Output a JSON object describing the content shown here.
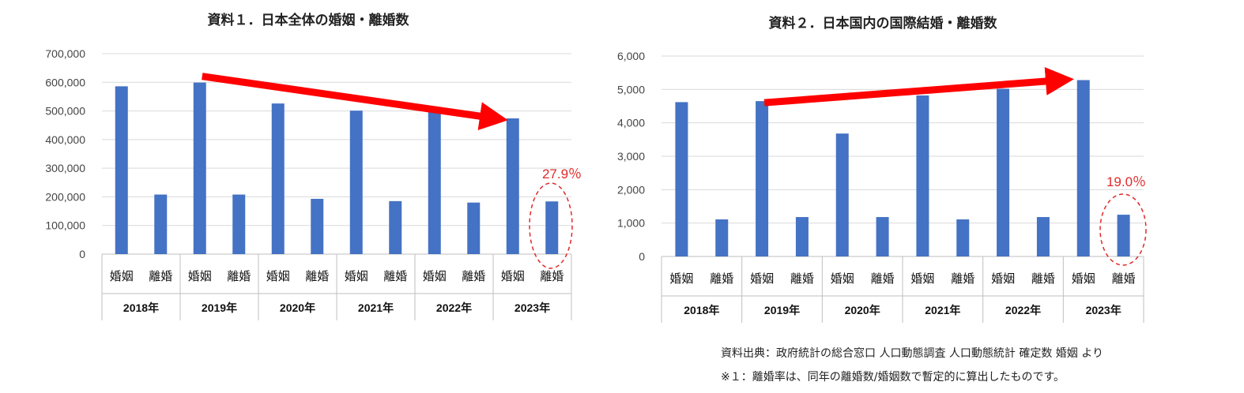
{
  "chart_data": [
    {
      "type": "bar",
      "title": "資料１．日本全体の婚姻・離婚数",
      "years": [
        "2018年",
        "2019年",
        "2020年",
        "2021年",
        "2022年",
        "2023年"
      ],
      "sub_labels": [
        "婚姻",
        "離婚"
      ],
      "series": [
        {
          "name": "婚姻",
          "values": [
            586000,
            599000,
            526000,
            501000,
            505000,
            474000
          ]
        },
        {
          "name": "離婚",
          "values": [
            208000,
            208000,
            193000,
            185000,
            180000,
            184000
          ]
        }
      ],
      "ylim": [
        0,
        700000
      ],
      "yticks": [
        "0",
        "100,000",
        "200,000",
        "300,000",
        "400,000",
        "500,000",
        "600,000",
        "700,000"
      ],
      "annotation": "27.9％",
      "trend": "down"
    },
    {
      "type": "bar",
      "title": "資料２．日本国内の国際結婚・離婚数",
      "years": [
        "2018年",
        "2019年",
        "2020年",
        "2021年",
        "2022年",
        "2023年"
      ],
      "sub_labels": [
        "婚姻",
        "離婚"
      ],
      "series": [
        {
          "name": "婚姻",
          "values": [
            4620,
            4650,
            3680,
            4820,
            5020,
            5280
          ]
        },
        {
          "name": "離婚",
          "values": [
            1110,
            1180,
            1180,
            1110,
            1180,
            1250
          ]
        }
      ],
      "ylim": [
        0,
        6000
      ],
      "yticks": [
        "0",
        "1,000",
        "2,000",
        "3,000",
        "4,000",
        "5,000",
        "6,000"
      ],
      "annotation": "19.0％",
      "trend": "up"
    }
  ],
  "colors": {
    "bar": "#4472c4",
    "arrow": "#ff0000",
    "annotation": "#e0292a",
    "grid": "#d9d9d9"
  },
  "footnotes": [
    "資料出典：政府統計の総合窓口 人口動態調査 人口動態統計 確定数 婚姻 より",
    "※１：離婚率は、同年の離婚数/婚姻数で暫定的に算出したものです。"
  ]
}
